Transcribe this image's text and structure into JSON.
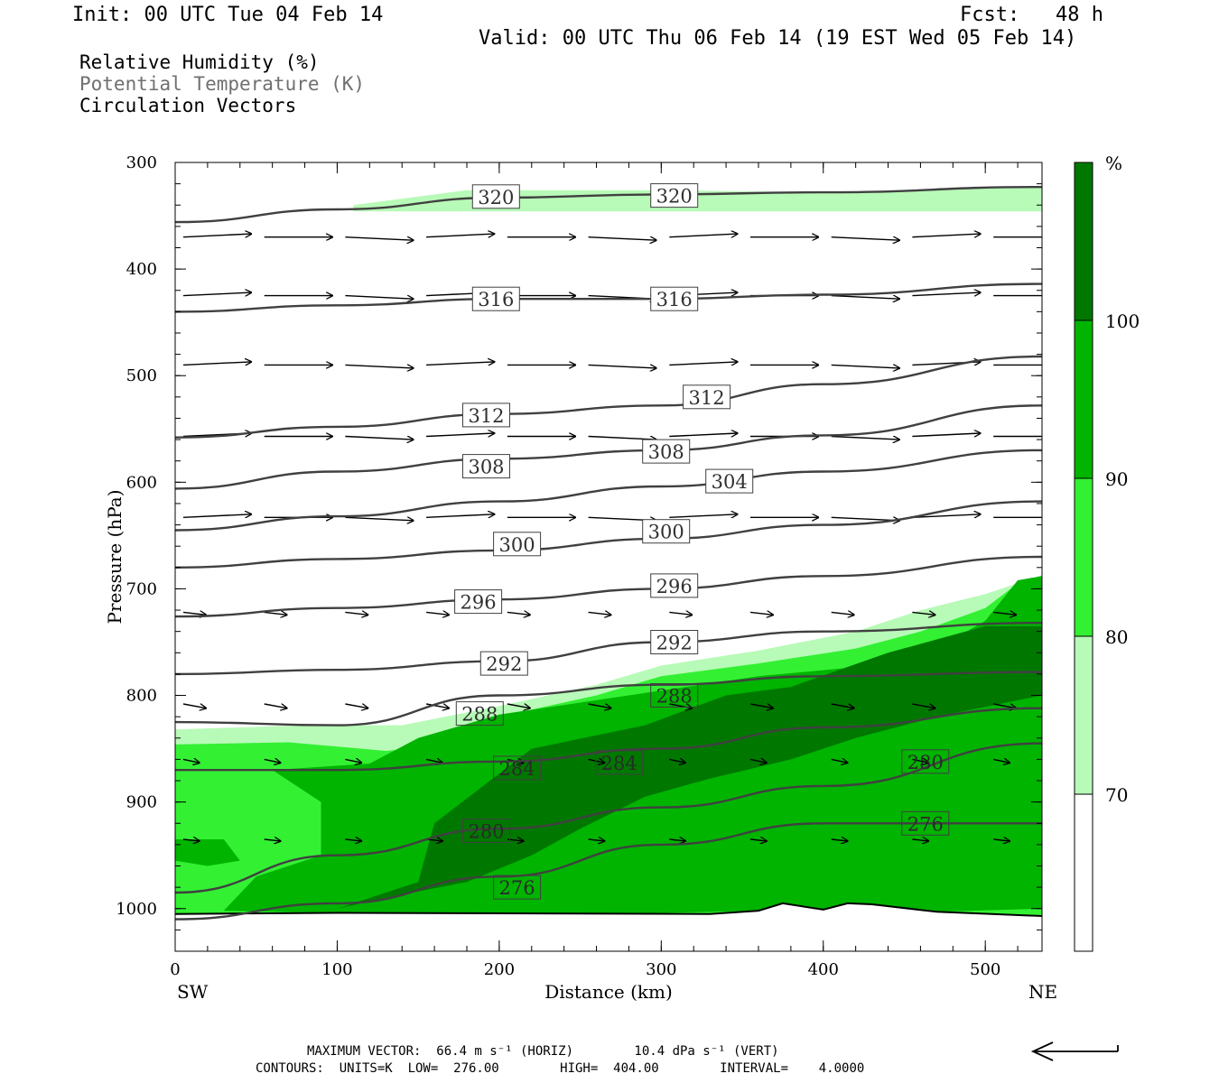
{
  "header": {
    "init": "Init: 00 UTC Tue 04 Feb 14",
    "fcst": "Fcst:   48 h",
    "valid": "Valid: 00 UTC Thu 06 Feb 14 (19 EST Wed 05 Feb 14)"
  },
  "legend": {
    "rh": "Relative Humidity (%)",
    "theta": "Potential Temperature (K)",
    "vectors": "Circulation Vectors"
  },
  "colors": {
    "rh_70_80": "#b8fab8",
    "rh_80_90": "#33f033",
    "rh_90_100": "#00b400",
    "rh_100": "#007800",
    "contour": "#404040",
    "vector": "#000000"
  },
  "chart_data": {
    "type": "cross-section",
    "xlabel": "Distance (km)",
    "ylabel": "Pressure (hPa)",
    "x_left_label": "SW",
    "x_right_label": "NE",
    "xlim": [
      0,
      535
    ],
    "ylim": [
      1040,
      300
    ],
    "x_ticks": [
      "0",
      "100",
      "200",
      "300",
      "400",
      "500"
    ],
    "y_ticks": [
      "300",
      "400",
      "500",
      "600",
      "700",
      "800",
      "900",
      "1000"
    ],
    "colorbar": {
      "unit": "%",
      "levels": [
        "70",
        "80",
        "90",
        "100"
      ]
    },
    "theta_contours": [
      {
        "label": "320",
        "x": [
          0,
          100,
          200,
          300,
          400,
          535
        ],
        "p": [
          356,
          344,
          333,
          330,
          328,
          323
        ]
      },
      {
        "label": "316",
        "x": [
          0,
          100,
          200,
          300,
          400,
          535
        ],
        "p": [
          440,
          434,
          428,
          428,
          424,
          414
        ]
      },
      {
        "label": "312",
        "x": [
          0,
          100,
          200,
          300,
          400,
          535
        ],
        "p": [
          558,
          548,
          536,
          528,
          508,
          482
        ]
      },
      {
        "label": "308",
        "x": [
          0,
          100,
          200,
          300,
          400,
          535
        ],
        "p": [
          606,
          590,
          578,
          570,
          556,
          528
        ]
      },
      {
        "label": "304",
        "x": [
          0,
          100,
          200,
          300,
          400,
          535
        ],
        "p": [
          645,
          632,
          618,
          604,
          590,
          570
        ]
      },
      {
        "label": "300",
        "x": [
          0,
          100,
          200,
          300,
          400,
          535
        ],
        "p": [
          680,
          672,
          664,
          653,
          640,
          618
        ]
      },
      {
        "label": "296",
        "x": [
          0,
          100,
          200,
          300,
          400,
          535
        ],
        "p": [
          726,
          718,
          710,
          700,
          688,
          670
        ]
      },
      {
        "label": "292",
        "x": [
          0,
          100,
          200,
          300,
          400,
          535
        ],
        "p": [
          780,
          776,
          768,
          750,
          740,
          732
        ]
      },
      {
        "label": "288",
        "x": [
          0,
          100,
          200,
          300,
          400,
          535
        ],
        "p": [
          825,
          828,
          800,
          790,
          782,
          778
        ]
      },
      {
        "label": "284",
        "x": [
          0,
          100,
          200,
          300,
          400,
          535
        ],
        "p": [
          870,
          870,
          862,
          850,
          830,
          812
        ]
      },
      {
        "label": "280",
        "x": [
          0,
          100,
          200,
          300,
          400,
          535
        ],
        "p": [
          985,
          950,
          925,
          905,
          885,
          845
        ]
      },
      {
        "label": "276",
        "x": [
          0,
          100,
          200,
          300,
          400,
          535
        ],
        "p": [
          1010,
          995,
          970,
          940,
          920,
          920
        ]
      }
    ],
    "label_positions": [
      {
        "label": "320",
        "x": 198,
        "p": 332
      },
      {
        "label": "320",
        "x": 308,
        "p": 331
      },
      {
        "label": "316",
        "x": 198,
        "p": 428
      },
      {
        "label": "316",
        "x": 308,
        "p": 428
      },
      {
        "label": "312",
        "x": 192,
        "p": 537
      },
      {
        "label": "312",
        "x": 328,
        "p": 520
      },
      {
        "label": "308",
        "x": 192,
        "p": 585
      },
      {
        "label": "308",
        "x": 303,
        "p": 571
      },
      {
        "label": "304",
        "x": 342,
        "p": 599
      },
      {
        "label": "300",
        "x": 211,
        "p": 658
      },
      {
        "label": "300",
        "x": 303,
        "p": 646
      },
      {
        "label": "296",
        "x": 187,
        "p": 712
      },
      {
        "label": "296",
        "x": 308,
        "p": 697
      },
      {
        "label": "292",
        "x": 203,
        "p": 770
      },
      {
        "label": "292",
        "x": 308,
        "p": 750
      },
      {
        "label": "288",
        "x": 188,
        "p": 817
      },
      {
        "label": "288",
        "x": 308,
        "p": 800
      },
      {
        "label": "284",
        "x": 211,
        "p": 868
      },
      {
        "label": "284",
        "x": 274,
        "p": 863
      },
      {
        "label": "280",
        "x": 192,
        "p": 927
      },
      {
        "label": "280",
        "x": 463,
        "p": 862
      },
      {
        "label": "276",
        "x": 211,
        "p": 980
      },
      {
        "label": "276",
        "x": 463,
        "p": 920
      }
    ]
  },
  "footer": {
    "max_vector": "MAXIMUM VECTOR:  66.4 m s⁻¹ (HORIZ)        10.4 dPa s⁻¹ (VERT)",
    "contours": "CONTOURS:  UNITS=K  LOW=  276.00        HIGH=  404.00        INTERVAL=    4.0000"
  }
}
